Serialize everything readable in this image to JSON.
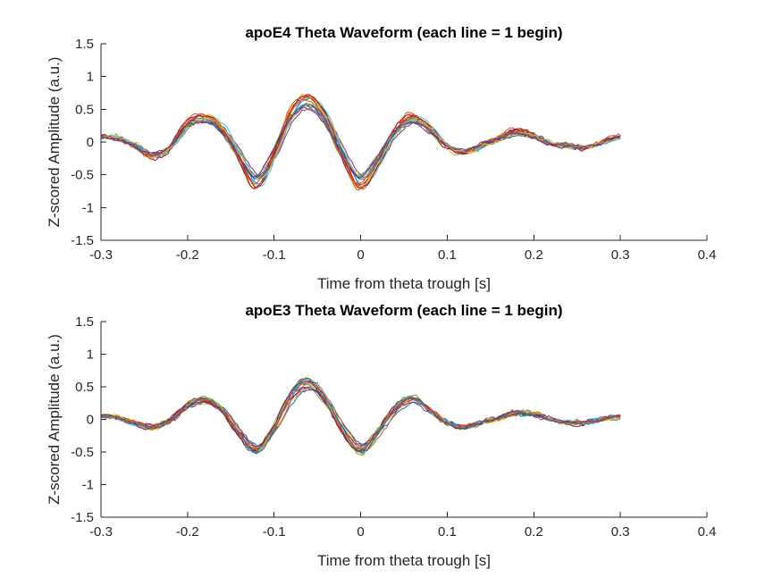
{
  "chart_data": [
    {
      "type": "line",
      "title": "apoE4 Theta Waveform (each line = 1 begin)",
      "xlabel": "Time from theta trough [s]",
      "ylabel": "Z-scored Amplitude (a.u.)",
      "xlim": [
        -0.3,
        0.4
      ],
      "ylim": [
        -1.5,
        1.5
      ],
      "xticks": [
        -0.3,
        -0.2,
        -0.1,
        0,
        0.1,
        0.2,
        0.3,
        0.4
      ],
      "yticks": [
        -1.5,
        -1,
        -0.5,
        0,
        0.5,
        1,
        1.5
      ],
      "xtick_labels": [
        "-0.3",
        "-0.2",
        "-0.1",
        "0",
        "0.1",
        "0.2",
        "0.3",
        "0.4"
      ],
      "ytick_labels": [
        "-1.5",
        "-1",
        "-0.5",
        "0",
        "0.5",
        "1",
        "1.5"
      ],
      "grid": false,
      "legend": "none",
      "n_series": 18,
      "x": [
        -0.3,
        -0.28,
        -0.26,
        -0.24,
        -0.22,
        -0.2,
        -0.18,
        -0.16,
        -0.14,
        -0.12,
        -0.1,
        -0.08,
        -0.06,
        -0.04,
        -0.02,
        0,
        0.02,
        0.04,
        0.06,
        0.08,
        0.1,
        0.12,
        0.14,
        0.16,
        0.18,
        0.2,
        0.22,
        0.24,
        0.26,
        0.28,
        0.3
      ],
      "mean_waveform": [
        0.08,
        0.05,
        -0.05,
        -0.2,
        -0.08,
        0.25,
        0.35,
        0.2,
        -0.2,
        -0.6,
        -0.2,
        0.4,
        0.6,
        0.35,
        -0.2,
        -0.6,
        -0.3,
        0.15,
        0.35,
        0.2,
        -0.05,
        -0.15,
        -0.05,
        0.05,
        0.15,
        0.1,
        -0.02,
        -0.05,
        -0.08,
        0.0,
        0.08
      ]
    },
    {
      "type": "line",
      "title": "apoE3 Theta Waveform (each line = 1 begin)",
      "xlabel": "Time from theta trough [s]",
      "ylabel": "Z-scored Amplitude (a.u.)",
      "xlim": [
        -0.3,
        0.4
      ],
      "ylim": [
        -1.5,
        1.5
      ],
      "xticks": [
        -0.3,
        -0.2,
        -0.1,
        0,
        0.1,
        0.2,
        0.3,
        0.4
      ],
      "yticks": [
        -1.5,
        -1,
        -0.5,
        0,
        0.5,
        1,
        1.5
      ],
      "xtick_labels": [
        "-0.3",
        "-0.2",
        "-0.1",
        "0",
        "0.1",
        "0.2",
        "0.3",
        "0.4"
      ],
      "ytick_labels": [
        "-1.5",
        "-1",
        "-0.5",
        "0",
        "0.5",
        "1",
        "1.5"
      ],
      "grid": false,
      "legend": "none",
      "n_series": 16,
      "x": [
        -0.3,
        -0.28,
        -0.26,
        -0.24,
        -0.22,
        -0.2,
        -0.18,
        -0.16,
        -0.14,
        -0.12,
        -0.1,
        -0.08,
        -0.06,
        -0.04,
        -0.02,
        0,
        0.02,
        0.04,
        0.06,
        0.08,
        0.1,
        0.12,
        0.14,
        0.16,
        0.18,
        0.2,
        0.22,
        0.24,
        0.26,
        0.28,
        0.3
      ],
      "mean_waveform": [
        0.05,
        0.03,
        -0.05,
        -0.12,
        -0.02,
        0.2,
        0.3,
        0.15,
        -0.2,
        -0.45,
        -0.15,
        0.35,
        0.55,
        0.3,
        -0.15,
        -0.45,
        -0.2,
        0.15,
        0.32,
        0.15,
        -0.05,
        -0.12,
        -0.05,
        0.02,
        0.1,
        0.08,
        0.0,
        -0.05,
        -0.05,
        0.0,
        0.05
      ]
    }
  ],
  "palette": [
    "#0072BD",
    "#D95319",
    "#EDB120",
    "#7E2F8E",
    "#77AC30",
    "#4DBEEE",
    "#A2142F"
  ]
}
